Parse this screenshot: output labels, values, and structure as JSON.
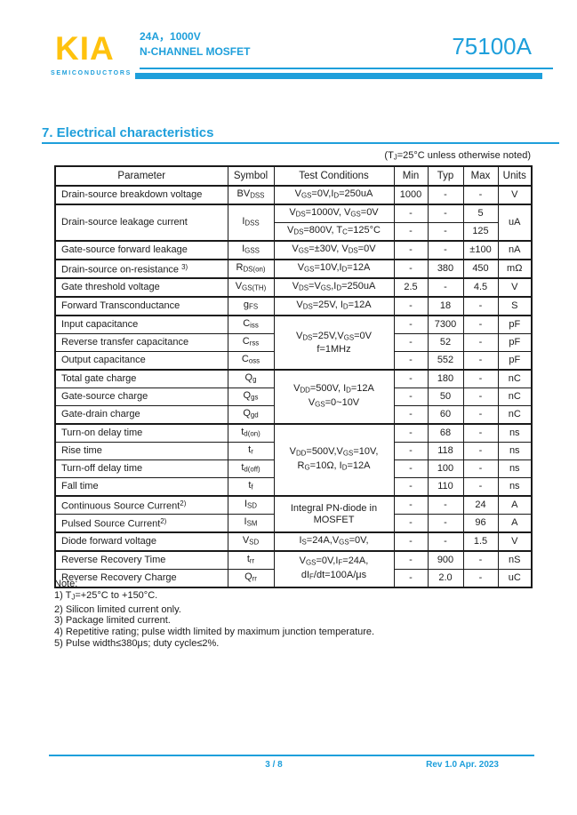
{
  "colors": {
    "accent": "#1E9FDB",
    "logo_yellow": "#FFC20E",
    "ink": "#1c1c1c"
  },
  "header": {
    "logo_text": "KIA",
    "logo_subtext": "SEMICONDUCTORS",
    "rating_line": "24A，1000V",
    "type_line": "N-CHANNEL MOSFET",
    "part_number": "75100A"
  },
  "section": {
    "title": "7.  Electrical characteristics",
    "condition_note_html": "(T<sub>J</sub>=25°C unless otherwise noted)"
  },
  "table": {
    "headers": [
      "Parameter",
      "Symbol",
      "Test Conditions",
      "Min",
      "Typ",
      "Max",
      "Units"
    ],
    "rows": [
      {
        "g": true,
        "c": [
          {
            "h": "Drain-source breakdown voltage",
            "cl": "p"
          },
          {
            "h": "BV<sub>DSS</sub>"
          },
          {
            "h": "V<sub>GS</sub>=0V,I<sub>D</sub>=250uA",
            "cl": "cond"
          },
          {
            "h": "1000"
          },
          {
            "h": "-"
          },
          {
            "h": "-"
          },
          {
            "h": "V"
          }
        ]
      },
      {
        "g": true,
        "c": [
          {
            "h": "Drain-source leakage current",
            "cl": "p",
            "rs": 2
          },
          {
            "h": "I<sub>DSS</sub>",
            "rs": 2
          },
          {
            "h": "V<sub>DS</sub>=1000V, V<sub>GS</sub>=0V",
            "cl": "cond"
          },
          {
            "h": "-"
          },
          {
            "h": "-"
          },
          {
            "h": "5"
          },
          {
            "h": "uA",
            "rs": 2
          }
        ]
      },
      {
        "g": false,
        "c": [
          {
            "h": "V<sub>DS</sub>=800V, T<sub>C</sub>=125°C",
            "cl": "cond"
          },
          {
            "h": "-"
          },
          {
            "h": "-"
          },
          {
            "h": "125"
          }
        ]
      },
      {
        "g": true,
        "c": [
          {
            "h": "Gate-source forward leakage",
            "cl": "p"
          },
          {
            "h": "I<sub>GSS</sub>"
          },
          {
            "h": "V<sub>GS</sub>=±30V, V<sub>DS</sub>=0V",
            "cl": "cond"
          },
          {
            "h": "-"
          },
          {
            "h": "-"
          },
          {
            "h": "±100"
          },
          {
            "h": "nA"
          }
        ]
      },
      {
        "g": true,
        "c": [
          {
            "h": "Drain-source on-resistance <sup>3)</sup>",
            "cl": "p"
          },
          {
            "h": "R<sub>DS(on)</sub>"
          },
          {
            "h": "V<sub>GS</sub>=10V,I<sub>D</sub>=12A",
            "cl": "cond"
          },
          {
            "h": "-"
          },
          {
            "h": "380"
          },
          {
            "h": "450"
          },
          {
            "h": "mΩ"
          }
        ]
      },
      {
        "g": true,
        "c": [
          {
            "h": "Gate threshold voltage",
            "cl": "p"
          },
          {
            "h": "V<sub>GS(TH)</sub>"
          },
          {
            "h": "V<sub>DS</sub>=V<sub>GS</sub>,I<sub>D</sub>=250uA",
            "cl": "cond"
          },
          {
            "h": "2.5"
          },
          {
            "h": "-"
          },
          {
            "h": "4.5"
          },
          {
            "h": "V"
          }
        ]
      },
      {
        "g": true,
        "c": [
          {
            "h": "Forward Transconductance",
            "cl": "p"
          },
          {
            "h": "g<sub>FS</sub>"
          },
          {
            "h": "V<sub>DS</sub>=25V, I<sub>D</sub>=12A",
            "cl": "cond"
          },
          {
            "h": "-"
          },
          {
            "h": "18"
          },
          {
            "h": "-"
          },
          {
            "h": "S"
          }
        ]
      },
      {
        "g": true,
        "c": [
          {
            "h": "Input capacitance",
            "cl": "p"
          },
          {
            "h": "C<sub>iss</sub>"
          },
          {
            "h": "V<sub>DS</sub>=25V,V<sub>GS</sub>=0V<br>f=1MHz",
            "cl": "cond",
            "rs": 3
          },
          {
            "h": "-"
          },
          {
            "h": "7300"
          },
          {
            "h": "-"
          },
          {
            "h": "pF"
          }
        ]
      },
      {
        "g": false,
        "c": [
          {
            "h": "Reverse transfer capacitance",
            "cl": "p"
          },
          {
            "h": "C<sub>rss</sub>"
          },
          {
            "h": "-"
          },
          {
            "h": "52"
          },
          {
            "h": "-"
          },
          {
            "h": "pF"
          }
        ]
      },
      {
        "g": false,
        "c": [
          {
            "h": "Output capacitance",
            "cl": "p"
          },
          {
            "h": "C<sub>oss</sub>"
          },
          {
            "h": "-"
          },
          {
            "h": "552"
          },
          {
            "h": "-"
          },
          {
            "h": "pF"
          }
        ]
      },
      {
        "g": true,
        "c": [
          {
            "h": "Total gate charge",
            "cl": "p"
          },
          {
            "h": "Q<sub>g</sub>"
          },
          {
            "h": "V<sub>DD</sub>=500V, I<sub>D</sub>=12A<br>V<sub>GS</sub>=0~10V",
            "cl": "cond",
            "rs": 3
          },
          {
            "h": "-"
          },
          {
            "h": "180"
          },
          {
            "h": "-"
          },
          {
            "h": "nC"
          }
        ]
      },
      {
        "g": false,
        "c": [
          {
            "h": "Gate-source charge",
            "cl": "p"
          },
          {
            "h": "Q<sub>gs</sub>"
          },
          {
            "h": "-"
          },
          {
            "h": "50"
          },
          {
            "h": "-"
          },
          {
            "h": "nC"
          }
        ]
      },
      {
        "g": false,
        "c": [
          {
            "h": "Gate-drain charge",
            "cl": "p"
          },
          {
            "h": "Q<sub>gd</sub>"
          },
          {
            "h": "-"
          },
          {
            "h": "60"
          },
          {
            "h": "-"
          },
          {
            "h": "nC"
          }
        ]
      },
      {
        "g": true,
        "c": [
          {
            "h": "Turn-on delay time",
            "cl": "p"
          },
          {
            "h": "t<sub>d(on)</sub>"
          },
          {
            "h": "V<sub>DD</sub>=500V,V<sub>GS</sub>=10V,<br>R<sub>G</sub>=10Ω, I<sub>D</sub>=12A",
            "cl": "cond",
            "rs": 4
          },
          {
            "h": "-"
          },
          {
            "h": "68"
          },
          {
            "h": "-"
          },
          {
            "h": "ns"
          }
        ]
      },
      {
        "g": false,
        "c": [
          {
            "h": "Rise time",
            "cl": "p"
          },
          {
            "h": "t<sub>r</sub>"
          },
          {
            "h": "-"
          },
          {
            "h": "118"
          },
          {
            "h": "-"
          },
          {
            "h": "ns"
          }
        ]
      },
      {
        "g": false,
        "c": [
          {
            "h": "Turn-off delay time",
            "cl": "p"
          },
          {
            "h": "t<sub>d(off)</sub>"
          },
          {
            "h": "-"
          },
          {
            "h": "100"
          },
          {
            "h": "-"
          },
          {
            "h": "ns"
          }
        ]
      },
      {
        "g": false,
        "c": [
          {
            "h": "Fall time",
            "cl": "p"
          },
          {
            "h": "t<sub>f</sub>"
          },
          {
            "h": "-"
          },
          {
            "h": "110"
          },
          {
            "h": "-"
          },
          {
            "h": "ns"
          }
        ]
      },
      {
        "g": true,
        "c": [
          {
            "h": "Continuous Source Current<sup>2)</sup>",
            "cl": "p"
          },
          {
            "h": "I<sub>SD</sub>"
          },
          {
            "h": "Integral PN-diode in<br>MOSFET",
            "cl": "cond",
            "rs": 2
          },
          {
            "h": "-"
          },
          {
            "h": "-"
          },
          {
            "h": "24"
          },
          {
            "h": "A"
          }
        ]
      },
      {
        "g": false,
        "c": [
          {
            "h": "Pulsed Source Current<sup>2)</sup>",
            "cl": "p"
          },
          {
            "h": "I<sub>SM</sub>"
          },
          {
            "h": "-"
          },
          {
            "h": "-"
          },
          {
            "h": "96"
          },
          {
            "h": "A"
          }
        ]
      },
      {
        "g": true,
        "c": [
          {
            "h": "Diode forward voltage",
            "cl": "p"
          },
          {
            "h": "V<sub>SD</sub>"
          },
          {
            "h": "I<sub>S</sub>=24A,V<sub>GS</sub>=0V,",
            "cl": "cond"
          },
          {
            "h": "-"
          },
          {
            "h": "-"
          },
          {
            "h": "1.5"
          },
          {
            "h": "V"
          }
        ]
      },
      {
        "g": true,
        "c": [
          {
            "h": "Reverse Recovery Time",
            "cl": "p"
          },
          {
            "h": "t<sub>rr</sub>"
          },
          {
            "h": "V<sub>GS</sub>=0V,I<sub>F</sub>=24A,<br>dI<sub>F</sub>/dt=100A/μs",
            "cl": "cond",
            "rs": 2
          },
          {
            "h": "-"
          },
          {
            "h": "900"
          },
          {
            "h": "-"
          },
          {
            "h": "nS"
          }
        ]
      },
      {
        "g": false,
        "c": [
          {
            "h": "Reverse Recovery Charge",
            "cl": "p"
          },
          {
            "h": "Q<sub>rr</sub>"
          },
          {
            "h": "-"
          },
          {
            "h": "2.0"
          },
          {
            "h": "-"
          },
          {
            "h": "uC"
          }
        ]
      }
    ]
  },
  "notes": {
    "title": "Note:",
    "items_html": [
      "1) T<sub>J</sub>=+25°C to +150°C.",
      "2) Silicon limited current only.",
      "3) Package limited current.",
      "4) Repetitive rating; pulse width limited by maximum junction temperature.",
      "5) Pulse width≤380μs; duty cycle≤2%."
    ]
  },
  "footer": {
    "page_indicator": "3 / 8",
    "revision": "Rev 1.0 Apr. 2023"
  }
}
